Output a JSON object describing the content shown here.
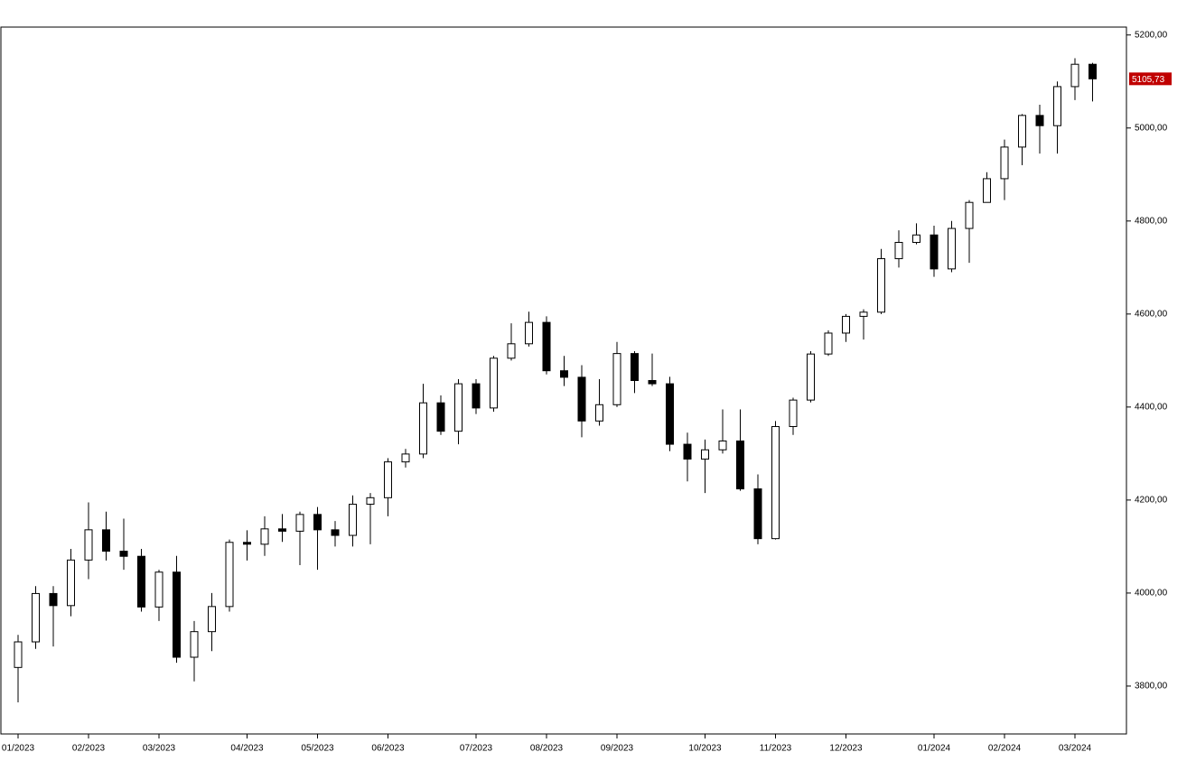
{
  "chart_data": {
    "type": "candlestick",
    "categories": [
      "01/2023",
      null,
      null,
      null,
      "02/2023",
      null,
      null,
      null,
      "03/2023",
      null,
      null,
      null,
      null,
      "04/2023",
      null,
      null,
      null,
      "05/2023",
      null,
      null,
      null,
      "06/2023",
      null,
      null,
      null,
      null,
      "07/2023",
      null,
      null,
      null,
      "08/2023",
      null,
      null,
      null,
      "09/2023",
      null,
      null,
      null,
      null,
      "10/2023",
      null,
      null,
      null,
      "11/2023",
      null,
      null,
      null,
      "12/2023",
      null,
      null,
      null,
      null,
      "01/2024",
      null,
      null,
      null,
      "02/2024",
      null,
      null,
      null,
      "03/2024",
      null
    ],
    "open": [
      3840,
      3895,
      3999,
      3973,
      4071,
      4136,
      4090,
      4079,
      3970,
      4045,
      3862,
      3917,
      3971,
      4109,
      4105,
      4138,
      4133,
      4169,
      4136,
      4124,
      4191,
      4205,
      4282,
      4299,
      4409,
      4348,
      4450,
      4398,
      4505,
      4536,
      4582,
      4478,
      4464,
      4370,
      4405,
      4515,
      4457,
      4450,
      4320,
      4288,
      4308,
      4327,
      4224,
      4117,
      4358,
      4415,
      4514,
      4559,
      4595,
      4604,
      4719,
      4754,
      4770,
      4697,
      4784,
      4840,
      4891,
      4959,
      5027,
      5005,
      5089,
      5137
    ],
    "high": [
      3910,
      4015,
      4015,
      4095,
      4195,
      4175,
      4160,
      4095,
      4050,
      4080,
      3940,
      4000,
      4115,
      4135,
      4165,
      4170,
      4175,
      4185,
      4155,
      4210,
      4215,
      4290,
      4310,
      4450,
      4425,
      4460,
      4460,
      4510,
      4580,
      4605,
      4595,
      4510,
      4490,
      4460,
      4540,
      4520,
      4515,
      4465,
      4345,
      4330,
      4395,
      4395,
      4255,
      4370,
      4420,
      4520,
      4565,
      4600,
      4610,
      4740,
      4780,
      4795,
      4790,
      4800,
      4845,
      4905,
      4975,
      5030,
      5050,
      5100,
      5150,
      5140
    ],
    "low": [
      3765,
      3880,
      3885,
      3950,
      4030,
      4070,
      4050,
      3960,
      3940,
      3850,
      3810,
      3875,
      3960,
      4070,
      4080,
      4110,
      4060,
      4050,
      4100,
      4100,
      4105,
      4165,
      4270,
      4290,
      4340,
      4320,
      4385,
      4390,
      4500,
      4530,
      4470,
      4445,
      4335,
      4360,
      4400,
      4430,
      4445,
      4305,
      4240,
      4215,
      4300,
      4220,
      4105,
      4115,
      4340,
      4410,
      4510,
      4540,
      4545,
      4600,
      4700,
      4750,
      4680,
      4690,
      4710,
      4840,
      4845,
      4920,
      4945,
      4945,
      5060,
      5057
    ],
    "close": [
      3895,
      3999,
      3973,
      4071,
      4136,
      4090,
      4079,
      3970,
      4045,
      3862,
      3917,
      3971,
      4109,
      4105,
      4138,
      4133,
      4169,
      4136,
      4124,
      4191,
      4205,
      4282,
      4299,
      4409,
      4348,
      4450,
      4398,
      4505,
      4536,
      4582,
      4478,
      4464,
      4370,
      4405,
      4515,
      4457,
      4450,
      4320,
      4288,
      4308,
      4327,
      4224,
      4117,
      4358,
      4415,
      4514,
      4559,
      4595,
      4604,
      4719,
      4754,
      4770,
      4697,
      4784,
      4840,
      4891,
      4959,
      5027,
      5005,
      5089,
      5137,
      5105.73
    ],
    "up_color": "#ffffff",
    "down_color": "#000000",
    "last_price": {
      "value": 5105.73,
      "label": "5105,73"
    },
    "last_price_color": "#c00000",
    "ylim": [
      3697,
      5217
    ],
    "yticks": [
      {
        "value": 3800,
        "label": "3800,00"
      },
      {
        "value": 4000,
        "label": "4000,00"
      },
      {
        "value": 4200,
        "label": "4200,00"
      },
      {
        "value": 4400,
        "label": "4400,00"
      },
      {
        "value": 4600,
        "label": "4600,00"
      },
      {
        "value": 4800,
        "label": "4800,00"
      },
      {
        "value": 5000,
        "label": "5000,00"
      },
      {
        "value": 5200,
        "label": "5200,00"
      }
    ]
  }
}
